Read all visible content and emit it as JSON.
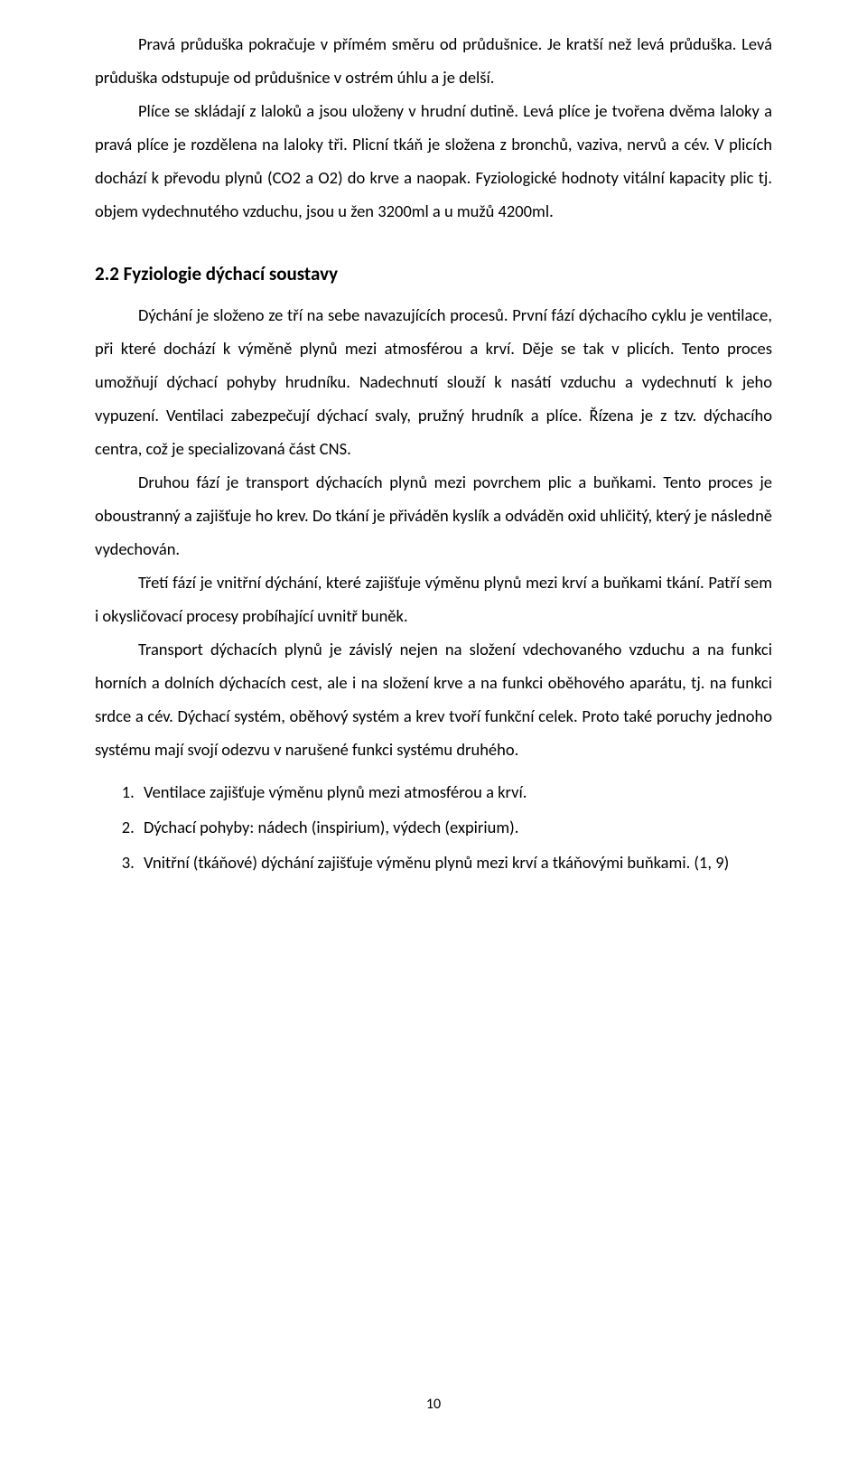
{
  "paragraphs": {
    "p1": "Pravá průduška pokračuje v přímém směru od průdušnice. Je kratší než levá průduška. Levá průduška odstupuje od průdušnice v ostrém úhlu a je delší.",
    "p2": "Plíce se skládají z laloků a jsou uloženy v hrudní dutině. Levá plíce je tvořena dvěma laloky a pravá plíce je rozdělena na laloky tři. Plicní tkáň je složena z bronchů, vaziva, nervů a cév. V plicích dochází k převodu plynů (CO2 a O2) do krve a naopak. Fyziologické hodnoty vitální kapacity plic tj. objem vydechnutého vzduchu, jsou u žen 3200ml a u mužů 4200ml.",
    "p3": "Dýchání je složeno ze tří na sebe navazujících procesů. První fází dýchacího cyklu je ventilace, při které dochází k výměně plynů mezi atmosférou a krví. Děje se tak v plicích. Tento proces umožňují dýchací pohyby hrudníku. Nadechnutí slouží k nasátí vzduchu a vydechnutí k jeho vypuzení. Ventilaci zabezpečují dýchací svaly, pružný hrudník a plíce. Řízena je z tzv. dýchacího centra, což je specializovaná část CNS.",
    "p4": "Druhou fází je transport dýchacích plynů mezi povrchem plic a buňkami. Tento proces je oboustranný a zajišťuje ho krev. Do tkání je přiváděn kyslík a odváděn oxid uhličitý, který je následně vydechován.",
    "p5": "Třetí fází je vnitřní dýchání, které zajišťuje výměnu plynů mezi krví a buňkami tkání. Patří sem i okysličovací procesy probíhající uvnitř buněk.",
    "p6": "Transport dýchacích plynů je závislý nejen na složení vdechovaného vzduchu a na funkci horních a dolních dýchacích cest, ale i na složení krve a na funkci oběhového aparátu, tj. na funkci srdce a cév. Dýchací systém, oběhový systém a krev tvoří funkční celek. Proto také poruchy jednoho systému mají svojí odezvu v narušené funkci systému druhého."
  },
  "heading": "2.2 Fyziologie dýchací soustavy",
  "list": {
    "li1": "Ventilace zajišťuje výměnu plynů mezi atmosférou a krví.",
    "li2": "Dýchací pohyby: nádech (inspirium), výdech (expirium).",
    "li3": "Vnitřní (tkáňové) dýchání zajišťuje výměnu plynů mezi krví a tkáňovými buňkami. (1, 9)"
  },
  "pageNumber": "10"
}
